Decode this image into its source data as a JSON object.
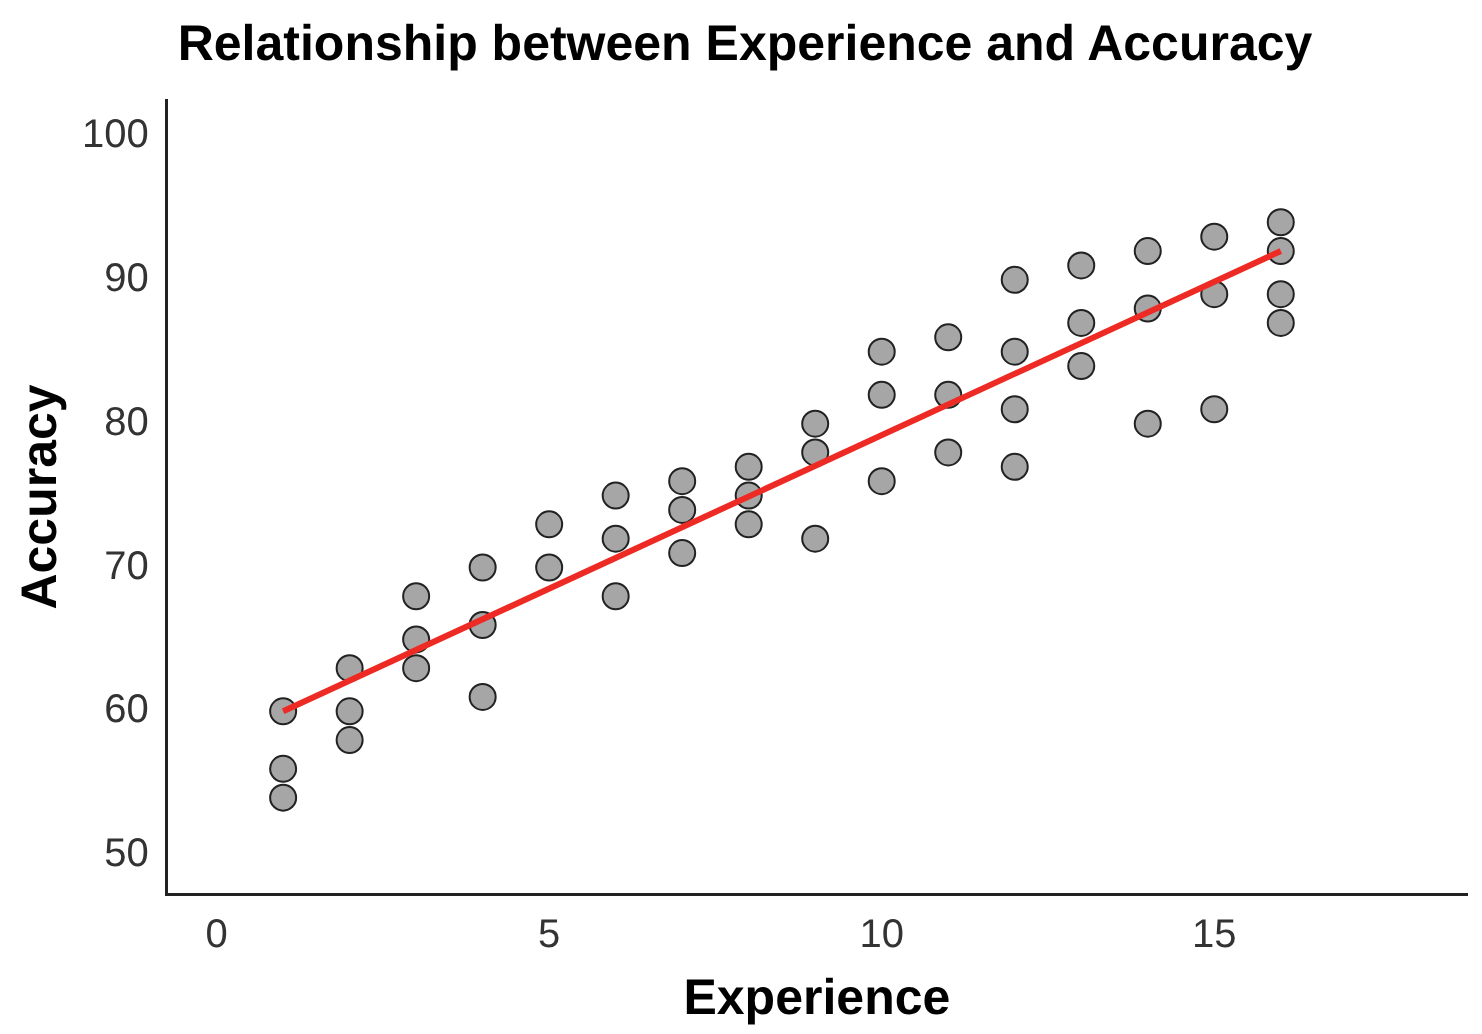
{
  "chart_data": {
    "type": "scatter",
    "title": "Relationship between Experience and Accuracy",
    "xlabel": "Experience",
    "ylabel": "Accuracy",
    "xlim": [
      -0.75,
      18.8
    ],
    "xticks": [
      0,
      5,
      10,
      15
    ],
    "ylim": [
      47.3,
      102.5
    ],
    "yticks": [
      50,
      60,
      70,
      80,
      90,
      100
    ],
    "grid": false,
    "legend": false,
    "series": [
      {
        "type": "scatter",
        "color": "#a6a6a6",
        "marker": "circle",
        "x": [
          1,
          1,
          1,
          2,
          2,
          2,
          3,
          3,
          3,
          4,
          4,
          4,
          5,
          5,
          6,
          6,
          6,
          7,
          7,
          7,
          8,
          8,
          8,
          9,
          9,
          9,
          10,
          10,
          10,
          11,
          11,
          11,
          12,
          12,
          12,
          12,
          13,
          13,
          13,
          14,
          14,
          14,
          15,
          15,
          15,
          16,
          16,
          16,
          16
        ],
        "values": [
          60,
          56,
          54,
          63,
          60,
          58,
          68,
          65,
          63,
          70,
          66,
          61,
          73,
          70,
          75,
          72,
          68,
          76,
          74,
          71,
          77,
          75,
          73,
          80,
          78,
          72,
          85,
          82,
          76,
          86,
          82,
          78,
          90,
          85,
          81,
          77,
          91,
          87,
          84,
          92,
          88,
          80,
          93,
          89,
          81,
          94,
          92,
          89,
          87
        ]
      },
      {
        "type": "line",
        "color": "#ee2a24",
        "marker": "none",
        "line_style": "solid",
        "x": [
          1,
          16
        ],
        "values": [
          60,
          92
        ]
      }
    ]
  }
}
